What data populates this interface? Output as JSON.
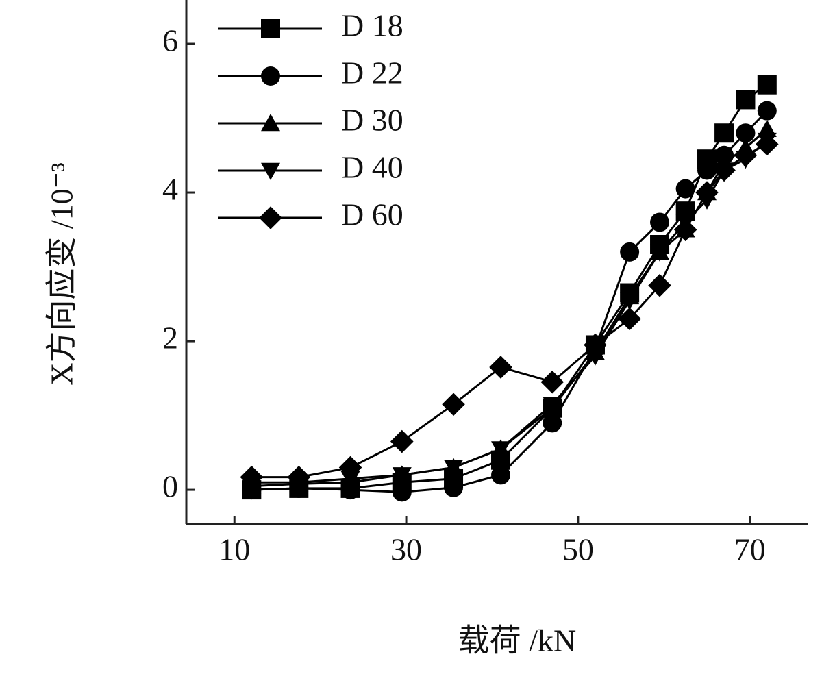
{
  "chart_data": {
    "type": "line",
    "xlabel": "载荷 /kN",
    "ylabel": "X方向应变 /10⁻³",
    "xlim": [
      4.4,
      76.8
    ],
    "xticks": [
      10,
      30,
      50,
      70
    ],
    "ylim": [
      -0.46,
      6.59
    ],
    "yticks": [
      0,
      2,
      4,
      6
    ],
    "x": [
      12,
      17.5,
      23.5,
      29.5,
      35.5,
      41,
      47,
      52,
      56,
      59.5,
      62.5,
      65,
      67,
      69.5,
      72
    ],
    "legend": "upper left",
    "series": [
      {
        "name": "D 18",
        "color": "#000000",
        "marker": "square",
        "values": [
          0.0,
          0.02,
          0.02,
          0.1,
          0.15,
          0.4,
          1.1,
          1.95,
          2.65,
          3.3,
          3.75,
          4.45,
          4.8,
          5.25,
          5.45
        ]
      },
      {
        "name": "D 22",
        "color": "#000000",
        "marker": "circle",
        "values": [
          0.0,
          0.02,
          0.0,
          -0.03,
          0.03,
          0.2,
          0.9,
          1.9,
          3.2,
          3.6,
          4.05,
          4.3,
          4.5,
          4.8,
          5.1
        ]
      },
      {
        "name": "D 30",
        "color": "#000000",
        "marker": "triangle-up",
        "values": [
          0.05,
          0.08,
          0.1,
          0.2,
          0.3,
          0.55,
          1.1,
          1.85,
          2.6,
          3.2,
          3.5,
          4.0,
          4.4,
          4.6,
          4.85
        ]
      },
      {
        "name": "D 40",
        "color": "#000000",
        "marker": "triangle-down",
        "values": [
          0.1,
          0.1,
          0.15,
          0.2,
          0.3,
          0.55,
          1.15,
          1.8,
          2.55,
          3.2,
          3.6,
          3.9,
          4.3,
          4.45,
          4.7
        ]
      },
      {
        "name": "D 60",
        "color": "#000000",
        "marker": "diamond",
        "values": [
          0.17,
          0.17,
          0.3,
          0.65,
          1.15,
          1.65,
          1.45,
          1.95,
          2.3,
          2.75,
          3.5,
          4.0,
          4.3,
          4.5,
          4.65
        ]
      }
    ]
  }
}
